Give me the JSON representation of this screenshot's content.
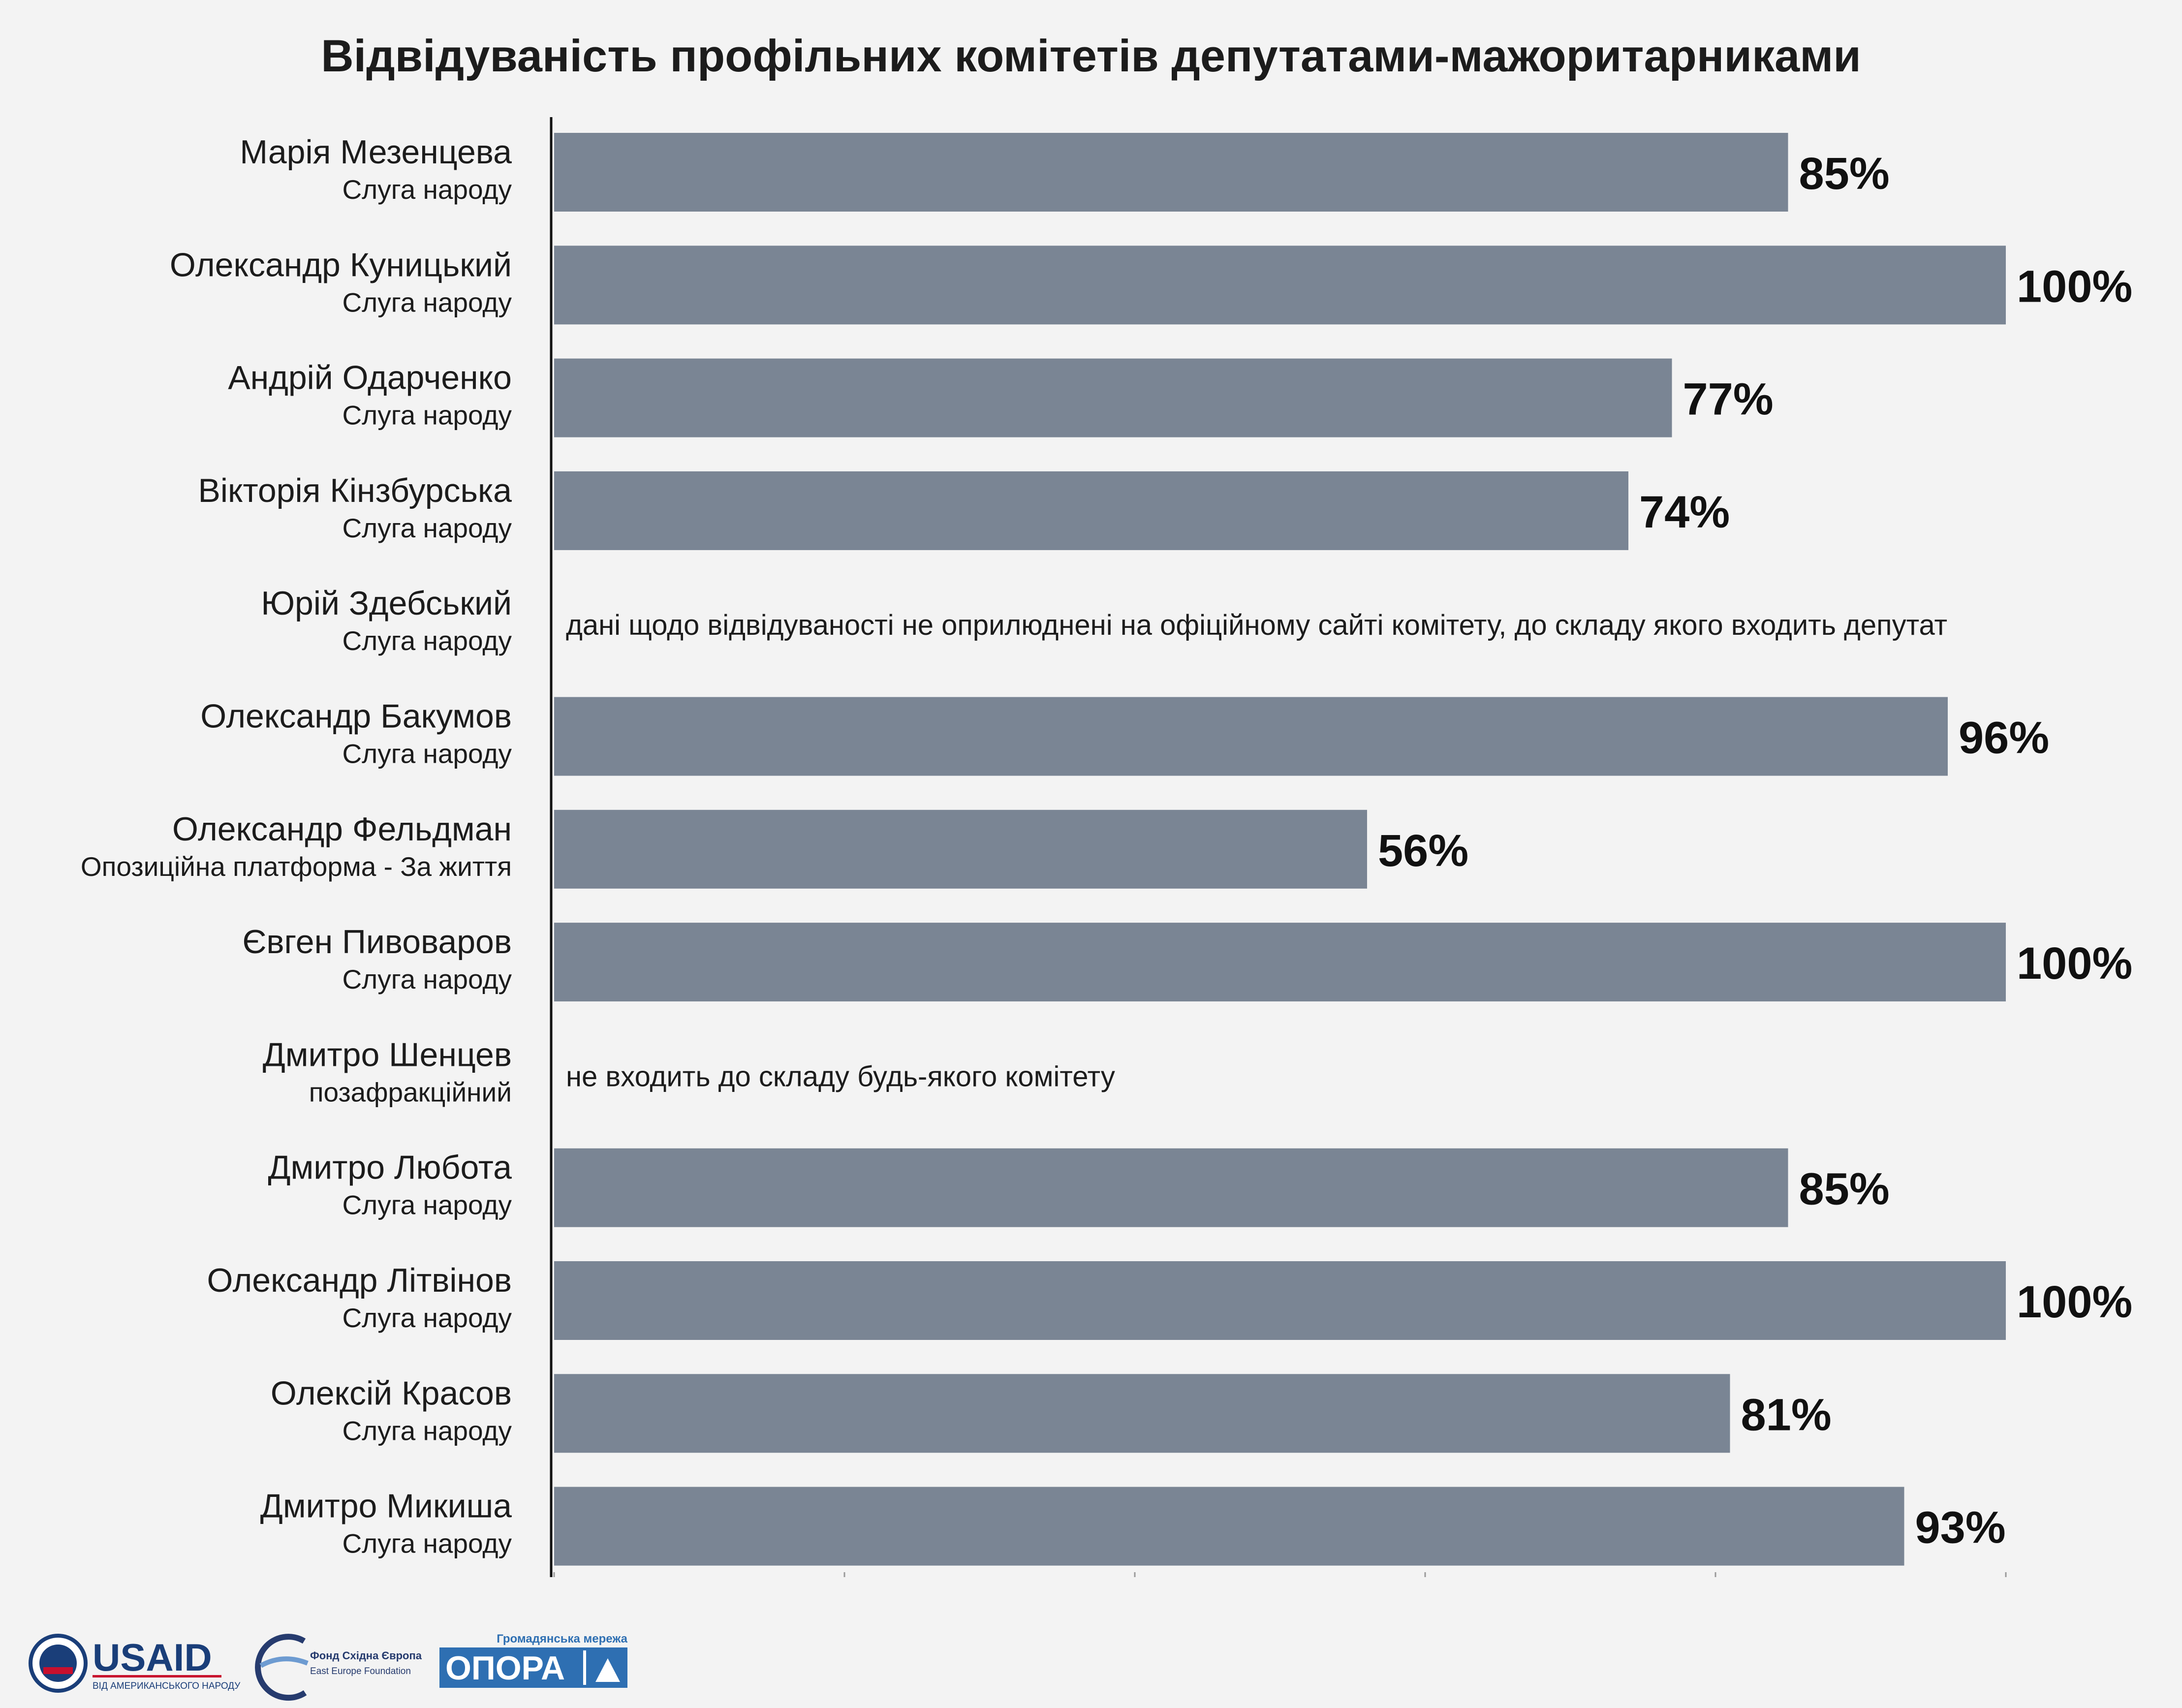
{
  "chart_data": {
    "type": "bar",
    "orientation": "horizontal",
    "title": "Відвідуваність профільних комітетів депутатами-мажоритарниками",
    "xlim": [
      0,
      100
    ],
    "bar_color": "#7a8594",
    "grid": false,
    "categories": [
      {
        "name": "Марія Мезенцева",
        "party": "Слуга народу",
        "value": 85,
        "label": "85%",
        "note": null
      },
      {
        "name": "Олександр Куницький",
        "party": "Слуга народу",
        "value": 100,
        "label": "100%",
        "note": null
      },
      {
        "name": "Андрій Одарченко",
        "party": "Слуга народу",
        "value": 77,
        "label": "77%",
        "note": null
      },
      {
        "name": "Вікторія Кінзбурська",
        "party": "Слуга народу",
        "value": 74,
        "label": "74%",
        "note": null
      },
      {
        "name": "Юрій Здебський",
        "party": "Слуга народу",
        "value": null,
        "label": null,
        "note": "дані щодо відвідуваності не оприлюднені на офіційному сайті комітету, до складу якого входить депутат"
      },
      {
        "name": "Олександр Бакумов",
        "party": "Слуга народу",
        "value": 96,
        "label": "96%",
        "note": null
      },
      {
        "name": "Олександр Фельдман",
        "party": "Опозиційна платформа - За життя",
        "value": 56,
        "label": "56%",
        "note": null
      },
      {
        "name": "Євген Пивоваров",
        "party": "Слуга народу",
        "value": 100,
        "label": "100%",
        "note": null
      },
      {
        "name": "Дмитро Шенцев",
        "party": "позафракційний",
        "value": null,
        "label": null,
        "note": "не входить до складу будь-якого комітету"
      },
      {
        "name": "Дмитро Любота",
        "party": "Слуга народу",
        "value": 85,
        "label": "85%",
        "note": null
      },
      {
        "name": "Олександр Літвінов",
        "party": "Слуга народу",
        "value": 100,
        "label": "100%",
        "note": null
      },
      {
        "name": "Олексій Красов",
        "party": "Слуга народу",
        "value": 81,
        "label": "81%",
        "note": null
      },
      {
        "name": "Дмитро Микиша",
        "party": "Слуга народу",
        "value": 93,
        "label": "93%",
        "note": null
      }
    ]
  },
  "footer": {
    "usaid": {
      "name": "USAID",
      "tagline": "ВІД АМЕРИКАНСЬКОГО НАРОДУ"
    },
    "eef": {
      "name": "Фонд Східна Європа",
      "name_en": "East Europe Foundation"
    },
    "opora": {
      "caption": "Громадянська мережа",
      "name": "ОПОРА"
    },
    "colors": {
      "usaid_blue": "#1a3e79",
      "usaid_red": "#c8102e",
      "opora_blue": "#2e6fb2",
      "eef_navy": "#263b6e"
    }
  }
}
